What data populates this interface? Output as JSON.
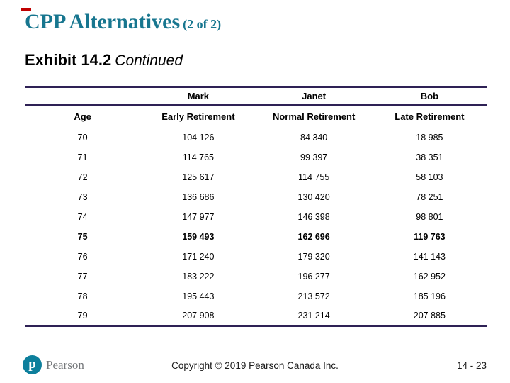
{
  "slide": {
    "title": "CPP Alternatives",
    "title_suffix": "(2 of 2)",
    "subtitle": "Exhibit 14.2",
    "subtitle_suffix": "Continued"
  },
  "colors": {
    "title_teal": "#17768F",
    "table_border": "#2E2155",
    "pearson_teal": "#0D7F9C",
    "pearson_gray": "#75787B",
    "accent_red": "#C00000"
  },
  "table": {
    "group_headers": [
      "",
      "Mark",
      "Janet",
      "Bob"
    ],
    "column_headers": [
      "Age",
      "Early Retirement",
      "Normal Retirement",
      "Late Retirement"
    ],
    "rows": [
      {
        "cells": [
          "70",
          "104 126",
          "84 340",
          "18 985"
        ],
        "bold": false
      },
      {
        "cells": [
          "71",
          "114 765",
          "99 397",
          "38 351"
        ],
        "bold": false
      },
      {
        "cells": [
          "72",
          "125 617",
          "114 755",
          "58 103"
        ],
        "bold": false
      },
      {
        "cells": [
          "73",
          "136 686",
          "130 420",
          "78 251"
        ],
        "bold": false
      },
      {
        "cells": [
          "74",
          "147 977",
          "146 398",
          "98 801"
        ],
        "bold": false
      },
      {
        "cells": [
          "75",
          "159 493",
          "162 696",
          "119 763"
        ],
        "bold": true
      },
      {
        "cells": [
          "76",
          "171 240",
          "179 320",
          "141 143"
        ],
        "bold": false
      },
      {
        "cells": [
          "77",
          "183 222",
          "196 277",
          "162 952"
        ],
        "bold": false
      },
      {
        "cells": [
          "78",
          "195 443",
          "213 572",
          "185 196"
        ],
        "bold": false
      },
      {
        "cells": [
          "79",
          "207 908",
          "231 214",
          "207 885"
        ],
        "bold": false
      }
    ]
  },
  "footer": {
    "logo_letter": "p",
    "logo_text": "Pearson",
    "copyright": "Copyright © 2019 Pearson Canada Inc.",
    "page_number": "14 - 23"
  }
}
